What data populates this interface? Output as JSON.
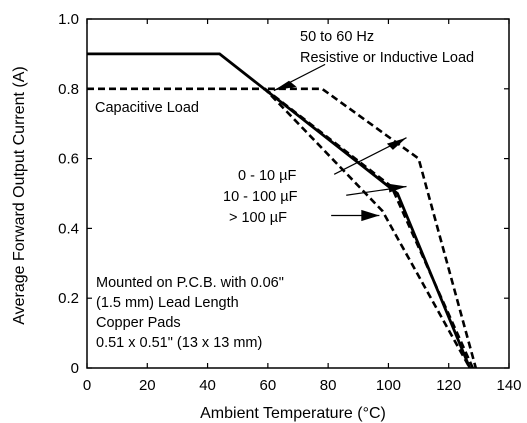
{
  "chart_data": {
    "type": "line",
    "title": "",
    "xlabel": "Ambient Temperature (°C)",
    "ylabel": "Average Forward Output Current (A)",
    "xlim": [
      0,
      140
    ],
    "ylim": [
      0,
      1.0
    ],
    "x_ticks": [
      "0",
      "20",
      "40",
      "60",
      "80",
      "100",
      "120",
      "140"
    ],
    "y_ticks": [
      "0",
      "0.2",
      "0.4",
      "0.6",
      "0.8",
      "1.0"
    ],
    "grid": false,
    "series": [
      {
        "name": "50 to 60 Hz Resistive or Inductive Load",
        "style": "solid",
        "points": [
          [
            0,
            0.9
          ],
          [
            44,
            0.9
          ],
          [
            103,
            0.5
          ],
          [
            127,
            0.0
          ]
        ]
      },
      {
        "name": "Capacitive Load",
        "style": "dashed",
        "points": [
          [
            0,
            0.8
          ],
          [
            59,
            0.8
          ],
          [
            98,
            0.45
          ],
          [
            127,
            0.0
          ]
        ]
      },
      {
        "name": "",
        "style": "dashed",
        "points": [
          [
            59,
            0.8
          ],
          [
            101,
            0.52
          ],
          [
            128,
            0.0
          ]
        ]
      },
      {
        "name": "",
        "style": "dashed",
        "points": [
          [
            60,
            0.8
          ],
          [
            78,
            0.8
          ],
          [
            110,
            0.6
          ],
          [
            129,
            0.0
          ]
        ]
      }
    ],
    "annotations": {
      "freq_label": [
        "50 to 60 Hz",
        "Resistive or Inductive Load"
      ],
      "capacitive_label": "Capacitive Load",
      "cap_ranges": [
        "0 - 10 µF",
        "10 - 100 µF",
        "> 100 µF"
      ],
      "mount_note": [
        "Mounted on P.C.B. with 0.06\"",
        "(1.5 mm) Lead Length",
        "Copper Pads",
        "0.51 x 0.51\" (13 x 13 mm)"
      ]
    },
    "colors": {
      "line": "#000000",
      "background": "#ffffff"
    }
  }
}
